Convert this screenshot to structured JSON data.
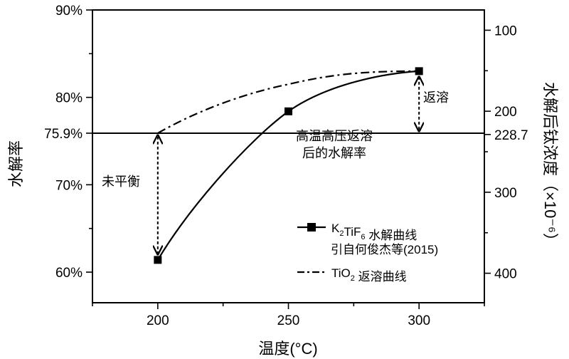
{
  "chart_data": {
    "type": "line",
    "xlabel": "温度(°C)",
    "ylabel": "水解率",
    "y2label": "水解后钛浓度（×10⁻⁶）",
    "xlim": [
      175,
      325
    ],
    "ylim": [
      0.565,
      0.9
    ],
    "y2lim": [
      75,
      436.4
    ],
    "x_ticks": [
      200,
      250,
      300
    ],
    "x_tick_labels": [
      "200",
      "250",
      "300"
    ],
    "y_ticks": [
      0.6,
      0.7,
      0.759,
      0.8,
      0.9
    ],
    "y_tick_labels": [
      "60%",
      "70%",
      "75.9%",
      "80%",
      "90%"
    ],
    "y2_ticks": [
      100,
      200,
      228.7,
      300,
      400
    ],
    "y2_tick_labels": [
      "100",
      "200",
      "228.7",
      "300",
      "400"
    ],
    "series": [
      {
        "name": "K2TiF6 水解曲线",
        "style": "solid-square-markers",
        "x": [
          200,
          250,
          300
        ],
        "values": [
          0.614,
          0.784,
          0.83
        ]
      },
      {
        "name": "TiO2 返溶曲线",
        "style": "dash-dot",
        "x": [
          200,
          250,
          300
        ],
        "values": [
          0.759,
          0.815,
          0.83
        ]
      }
    ],
    "reference_line": {
      "value": 0.759,
      "label_line1": "高温高压返溶",
      "label_line2": "后的水解率"
    },
    "annotations": [
      {
        "text": "未平衡",
        "x": 200,
        "from": 0.614,
        "to": 0.759
      },
      {
        "text": "返溶",
        "x": 300,
        "from": 0.83,
        "to": 0.759
      }
    ],
    "legend": {
      "position": "bottom-right",
      "entries": [
        {
          "prefix": "K",
          "sub1": "2",
          "mid": "TiF",
          "sub2": "6",
          "suffix": " 水解曲线",
          "line2": "引自何俊杰等(2015)"
        },
        {
          "prefix": "TiO",
          "sub1": "2",
          "suffix": " 返溶曲线"
        }
      ]
    }
  }
}
